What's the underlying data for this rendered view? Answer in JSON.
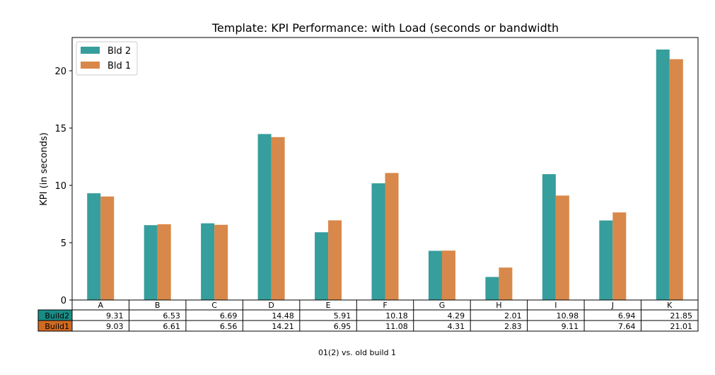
{
  "chart_data": {
    "type": "bar",
    "title": "Template: KPI Performance: with Load (seconds or bandwidth",
    "xlabel": "",
    "ylabel": "KPI (in seconds)",
    "ylim": [
      0,
      22.9
    ],
    "yticks": [
      0,
      5,
      10,
      15,
      20
    ],
    "categories": [
      "A",
      "B",
      "C",
      "D",
      "E",
      "F",
      "G",
      "H",
      "I",
      "J",
      "K"
    ],
    "series": [
      {
        "name": "Bld 2",
        "color": "#369e9c",
        "values": [
          9.31,
          6.53,
          6.69,
          14.48,
          5.91,
          10.18,
          4.29,
          2.01,
          10.98,
          6.94,
          21.85
        ]
      },
      {
        "name": "Bld 1",
        "color": "#d8884a",
        "values": [
          9.03,
          6.61,
          6.56,
          14.21,
          6.95,
          11.08,
          4.31,
          2.83,
          9.11,
          7.64,
          21.01
        ]
      }
    ],
    "legend_position": "top-left",
    "grid": false,
    "table": {
      "rows": [
        {
          "label": "Build2",
          "color": "#1a8c86",
          "values": [
            "9.31",
            "6.53",
            "6.69",
            "14.48",
            "5.91",
            "10.18",
            "4.29",
            "2.01",
            "10.98",
            "6.94",
            "21.85"
          ]
        },
        {
          "label": "Build1",
          "color": "#d06a22",
          "values": [
            "9.03",
            "6.61",
            "6.56",
            "14.21",
            "6.95",
            "11.08",
            "4.31",
            "2.83",
            "9.11",
            "7.64",
            "21.01"
          ]
        }
      ]
    },
    "caption": "01(2) vs. old build 1"
  }
}
